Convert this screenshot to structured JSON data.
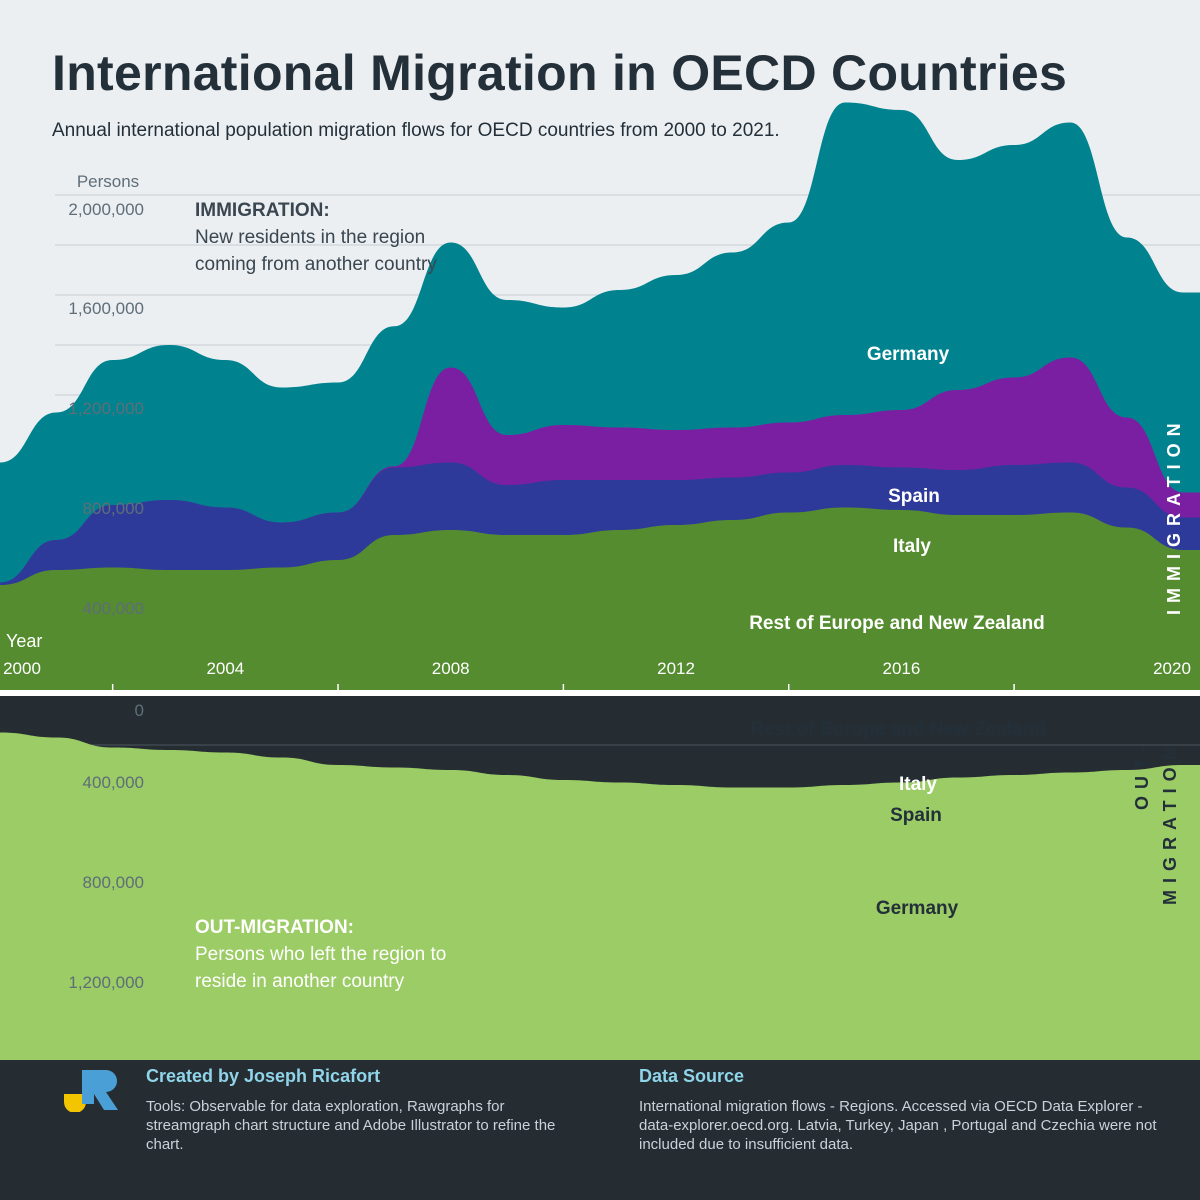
{
  "title": "International Migration in OECD Countries",
  "subtitle": "Annual international population migration flows for OECD countries from 2000 to 2021.",
  "chart_data": {
    "type": "area",
    "subtype": "mirrored streamgraph",
    "x": [
      2000,
      2001,
      2002,
      2003,
      2004,
      2005,
      2006,
      2007,
      2008,
      2009,
      2010,
      2011,
      2012,
      2013,
      2014,
      2015,
      2016,
      2017,
      2018,
      2019,
      2020,
      2021
    ],
    "xlabel": "Year",
    "ylabel": "Persons",
    "x_ticks": [
      "2000",
      "2004",
      "2008",
      "2012",
      "2016",
      "2020"
    ],
    "immigration": {
      "label_title": "IMMIGRATION:",
      "label_text_1": "New residents in the region",
      "label_text_2": "coming from another country",
      "side_label": "IMMIGRATION",
      "y_ticks": [
        "2,000,000",
        "1,600,000",
        "1,200,000",
        "800,000",
        "400,000"
      ],
      "series": [
        {
          "name": "Rest of Europe and New Zealand",
          "color": "#548c2f",
          "values": [
            200000,
            260000,
            270000,
            260000,
            260000,
            270000,
            300000,
            400000,
            420000,
            400000,
            400000,
            420000,
            440000,
            460000,
            490000,
            510000,
            500000,
            480000,
            480000,
            490000,
            430000,
            340000
          ]
        },
        {
          "name": "Italy",
          "color": "#2e3a9a",
          "values": [
            10000,
            120000,
            250000,
            280000,
            250000,
            180000,
            190000,
            270000,
            270000,
            200000,
            220000,
            200000,
            180000,
            170000,
            160000,
            170000,
            170000,
            180000,
            200000,
            200000,
            160000,
            130000
          ]
        },
        {
          "name": "Spain",
          "color": "#7b1fa2",
          "values": [
            0,
            0,
            0,
            0,
            0,
            0,
            0,
            5000,
            380000,
            200000,
            220000,
            210000,
            200000,
            200000,
            200000,
            200000,
            230000,
            320000,
            350000,
            420000,
            280000,
            100000
          ]
        },
        {
          "name": "Germany",
          "color": "#00838f",
          "values": [
            480000,
            510000,
            580000,
            620000,
            590000,
            540000,
            520000,
            560000,
            500000,
            540000,
            470000,
            550000,
            620000,
            700000,
            800000,
            1250000,
            1200000,
            920000,
            930000,
            940000,
            720000,
            800000
          ]
        }
      ]
    },
    "out_migration": {
      "label_title": "OUT-MIGRATION:",
      "label_text_1": "Persons who left the region to",
      "label_text_2": "reside in another country",
      "side_label_1": "OUT-",
      "side_label_2": "MIGRATION",
      "y_ticks": [
        "0",
        "400,000",
        "800,000",
        "1,200,000"
      ],
      "series": [
        {
          "name": "Rest of Europe and New Zealand",
          "color": "#9ccc65",
          "values": [
            90000,
            110000,
            150000,
            160000,
            170000,
            190000,
            220000,
            230000,
            240000,
            260000,
            280000,
            290000,
            300000,
            310000,
            310000,
            300000,
            290000,
            270000,
            260000,
            250000,
            240000,
            220000
          ]
        },
        {
          "name": "Italy",
          "color": "#7986cb",
          "values": [
            5000,
            15000,
            20000,
            20000,
            20000,
            20000,
            20000,
            20000,
            30000,
            40000,
            50000,
            60000,
            70000,
            80000,
            80000,
            80000,
            80000,
            80000,
            80000,
            90000,
            80000,
            60000
          ]
        },
        {
          "name": "Spain",
          "color": "#ce93d8",
          "values": [
            0,
            0,
            0,
            0,
            0,
            0,
            0,
            10000,
            200000,
            200000,
            200000,
            200000,
            230000,
            300000,
            230000,
            200000,
            230000,
            250000,
            210000,
            180000,
            110000,
            30000
          ]
        },
        {
          "name": "Germany",
          "color": "#4dd0e1",
          "values": [
            280000,
            320000,
            300000,
            340000,
            360000,
            340000,
            330000,
            340000,
            380000,
            400000,
            380000,
            380000,
            390000,
            400000,
            480000,
            600000,
            670000,
            700000,
            750000,
            680000,
            450000,
            280000
          ]
        }
      ]
    }
  },
  "footer": {
    "credit_title": "Created by Joseph Ricafort",
    "credit_text": "Tools: Observable for data exploration, Rawgraphs for streamgraph chart structure and Adobe Illustrator to refine the chart.",
    "source_title": "Data Source",
    "source_text": "International migration flows - Regions. Accessed via OECD Data Explorer - data-explorer.oecd.org. Latvia, Turkey, Japan , Portugal and Czechia were not included due to insufficient data."
  },
  "colors": {
    "background_top": "#eceff2",
    "background_bottom": "#252d33",
    "title": "#23303a",
    "footer_accent": "#8fd4e8"
  }
}
